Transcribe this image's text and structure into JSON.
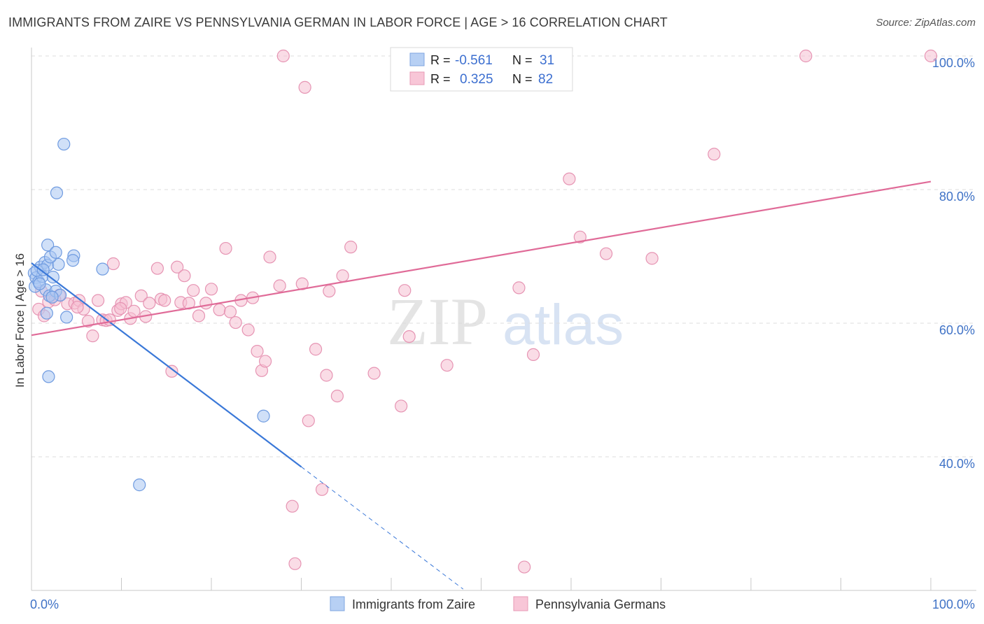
{
  "title": "IMMIGRANTS FROM ZAIRE VS PENNSYLVANIA GERMAN IN LABOR FORCE | AGE > 16 CORRELATION CHART",
  "source": "Source: ZipAtlas.com",
  "watermark": {
    "zip": "ZIP",
    "atlas": "atlas"
  },
  "colors": {
    "blue": "#3a78d8",
    "pink": "#e06b98",
    "blue_fill": "#a9c7f2",
    "pink_fill": "#f6bfd2"
  },
  "chart_data": {
    "type": "scatter",
    "ylabel": "In Labor Force | Age > 16",
    "xlim": [
      0,
      100
    ],
    "ylim": [
      20,
      100
    ],
    "x_ticks": [
      "0.0%",
      "100.0%"
    ],
    "y_ticks": [
      {
        "value": 40,
        "label": "40.0%"
      },
      {
        "value": 60,
        "label": "60.0%"
      },
      {
        "value": 80,
        "label": "80.0%"
      },
      {
        "value": 100,
        "label": "100.0%"
      }
    ],
    "legend": [
      {
        "r_label": "R =",
        "r_value": "-0.561",
        "n_label": "N =",
        "n_value": "31"
      },
      {
        "r_label": "R =",
        "r_value": "0.325",
        "n_label": "N =",
        "n_value": "82"
      }
    ],
    "series": [
      {
        "name": "Immigrants from Zaire",
        "color": "#3a78d8",
        "trend": {
          "x0": 0,
          "y0": 69.0,
          "x1": 30,
          "y1": 38.5,
          "dash_to_x": 48
        },
        "points": [
          [
            0.3,
            67.5
          ],
          [
            0.5,
            66.8
          ],
          [
            0.4,
            65.5
          ],
          [
            0.8,
            66.2
          ],
          [
            1.0,
            68.4
          ],
          [
            1.2,
            67.0
          ],
          [
            1.5,
            69.1
          ],
          [
            1.8,
            68.7
          ],
          [
            1.6,
            65.0
          ],
          [
            2.0,
            64.1
          ],
          [
            2.4,
            66.9
          ],
          [
            2.7,
            64.8
          ],
          [
            3.0,
            68.8
          ],
          [
            3.2,
            64.2
          ],
          [
            1.8,
            71.7
          ],
          [
            2.1,
            69.9
          ],
          [
            2.7,
            70.6
          ],
          [
            4.7,
            70.1
          ],
          [
            4.6,
            69.4
          ],
          [
            7.9,
            68.1
          ],
          [
            1.7,
            61.5
          ],
          [
            3.9,
            60.9
          ],
          [
            1.9,
            52.0
          ],
          [
            2.8,
            79.5
          ],
          [
            3.6,
            86.8
          ],
          [
            12.0,
            35.8
          ],
          [
            25.8,
            46.1
          ],
          [
            0.6,
            67.9
          ],
          [
            1.3,
            68.0
          ],
          [
            2.3,
            63.9
          ],
          [
            0.9,
            65.9
          ]
        ]
      },
      {
        "name": "Pennsylvania Germans",
        "color": "#e06b98",
        "trend": {
          "x0": 0,
          "y0": 58.2,
          "x1": 100,
          "y1": 81.2
        },
        "points": [
          [
            0.8,
            62.1
          ],
          [
            1.4,
            61.1
          ],
          [
            1.9,
            63.2
          ],
          [
            2.3,
            63.9
          ],
          [
            3.1,
            64.2
          ],
          [
            4.0,
            62.9
          ],
          [
            4.8,
            63.0
          ],
          [
            5.3,
            63.4
          ],
          [
            5.8,
            62.1
          ],
          [
            6.3,
            60.3
          ],
          [
            6.8,
            58.1
          ],
          [
            7.4,
            63.4
          ],
          [
            7.9,
            60.5
          ],
          [
            8.3,
            60.4
          ],
          [
            8.7,
            60.5
          ],
          [
            9.1,
            68.9
          ],
          [
            9.6,
            61.9
          ],
          [
            10.0,
            62.9
          ],
          [
            10.5,
            63.1
          ],
          [
            11.0,
            60.7
          ],
          [
            11.4,
            61.8
          ],
          [
            12.2,
            64.1
          ],
          [
            12.7,
            61.0
          ],
          [
            13.1,
            63.0
          ],
          [
            14.0,
            68.2
          ],
          [
            14.4,
            63.6
          ],
          [
            14.8,
            63.4
          ],
          [
            15.6,
            52.8
          ],
          [
            16.2,
            68.4
          ],
          [
            16.6,
            63.1
          ],
          [
            17.0,
            67.1
          ],
          [
            17.5,
            63.0
          ],
          [
            18.0,
            64.9
          ],
          [
            18.6,
            61.1
          ],
          [
            19.4,
            63.0
          ],
          [
            20.0,
            65.1
          ],
          [
            20.9,
            62.0
          ],
          [
            21.6,
            71.2
          ],
          [
            22.1,
            61.7
          ],
          [
            22.7,
            60.1
          ],
          [
            23.3,
            63.4
          ],
          [
            24.1,
            59.0
          ],
          [
            24.6,
            63.8
          ],
          [
            25.1,
            55.8
          ],
          [
            25.6,
            52.9
          ],
          [
            26.0,
            54.3
          ],
          [
            26.5,
            69.9
          ],
          [
            27.6,
            65.6
          ],
          [
            28.0,
            100
          ],
          [
            29.0,
            32.6
          ],
          [
            29.3,
            24.0
          ],
          [
            30.1,
            65.9
          ],
          [
            30.4,
            95.3
          ],
          [
            30.8,
            45.4
          ],
          [
            31.6,
            56.1
          ],
          [
            32.3,
            35.1
          ],
          [
            32.8,
            52.2
          ],
          [
            33.1,
            64.8
          ],
          [
            34.0,
            49.1
          ],
          [
            34.6,
            67.1
          ],
          [
            35.5,
            71.4
          ],
          [
            38.1,
            52.5
          ],
          [
            41.5,
            64.9
          ],
          [
            42.0,
            58.0
          ],
          [
            41.1,
            47.6
          ],
          [
            46.2,
            53.7
          ],
          [
            47.2,
            95.7
          ],
          [
            48.7,
            100
          ],
          [
            54.2,
            65.3
          ],
          [
            54.8,
            23.5
          ],
          [
            55.8,
            55.3
          ],
          [
            59.8,
            81.6
          ],
          [
            61.0,
            72.9
          ],
          [
            63.9,
            70.4
          ],
          [
            69.0,
            69.7
          ],
          [
            75.9,
            85.3
          ],
          [
            86.1,
            100
          ],
          [
            100,
            100
          ],
          [
            1.1,
            64.8
          ],
          [
            2.6,
            63.5
          ],
          [
            5.1,
            62.4
          ],
          [
            9.9,
            62.2
          ]
        ]
      }
    ]
  }
}
